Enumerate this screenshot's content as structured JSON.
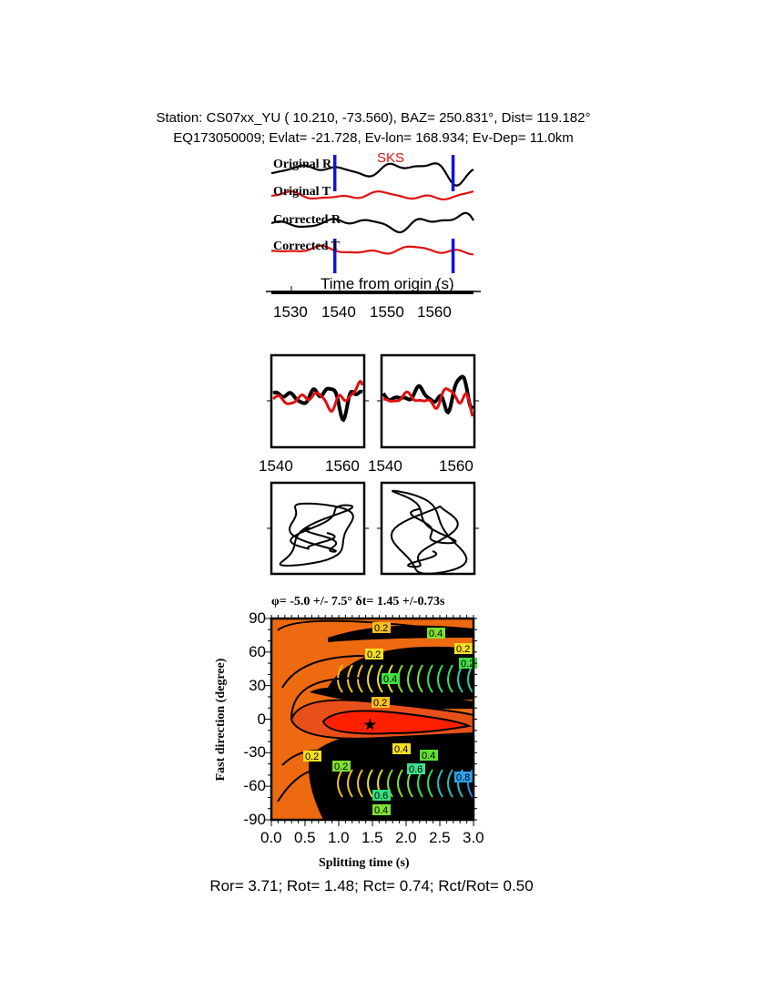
{
  "header": {
    "line1": "Station: CS07xx_YU (  10.210,  -73.560), BAZ=  250.831°, Dist=  119.182°",
    "line2": "EQ173050009; Evlat= -21.728, Ev-lon= 168.934; Ev-Dep= 11.0km"
  },
  "chart_data": [
    {
      "type": "line",
      "title": "",
      "phase_label": "SKS",
      "xlabel": "Time from origin (s)",
      "xticks": [
        "1530",
        "1540",
        "1550",
        "1560"
      ],
      "xlim": [
        1525,
        1568
      ],
      "window_markers_s": [
        1539,
        1563.5
      ],
      "series": [
        {
          "name": "Original R",
          "color": "#000000"
        },
        {
          "name": "Original T",
          "color": "#e01010"
        },
        {
          "name": "Corrected R",
          "color": "#000000"
        },
        {
          "name": "Corrected T",
          "color": "#e01010"
        }
      ]
    },
    {
      "type": "line",
      "panels": [
        {
          "xticks": [
            "1540",
            "1560"
          ],
          "xlim": [
            1538,
            1563
          ]
        },
        {
          "xticks": [
            "1540",
            "1560"
          ],
          "xlim": [
            1538,
            1563
          ]
        }
      ],
      "series_colors": [
        "#000000",
        "#e01010"
      ]
    },
    {
      "type": "scatter",
      "description_panels": 2
    },
    {
      "type": "heatmap",
      "title": "φ= -5.0 +/- 7.5° δt= 1.45 +/-0.73s",
      "xlabel": "Splitting time (s)",
      "ylabel": "Fast direction (degree)",
      "xlim": [
        0,
        3
      ],
      "ylim": [
        -90,
        90
      ],
      "xticks": [
        "0.0",
        "0.5",
        "1.0",
        "1.5",
        "2.0",
        "2.5",
        "3.0"
      ],
      "yticks": [
        "90",
        "60",
        "30",
        "0",
        "-30",
        "-60",
        "-90"
      ],
      "best_fit": {
        "dt": 1.45,
        "phi": -5.0
      },
      "contour_labels": [
        "0.2",
        "0.2",
        "0.2",
        "0.2",
        "0.4",
        "0.2",
        "0.4",
        "0.2",
        "0.4",
        "0.6",
        "0.8",
        "0.6",
        "0.4",
        "0.2",
        "0.4"
      ]
    }
  ],
  "footer": "Ror= 3.71; Rot= 1.48; Rct= 0.74; Rct/Rot= 0.50"
}
